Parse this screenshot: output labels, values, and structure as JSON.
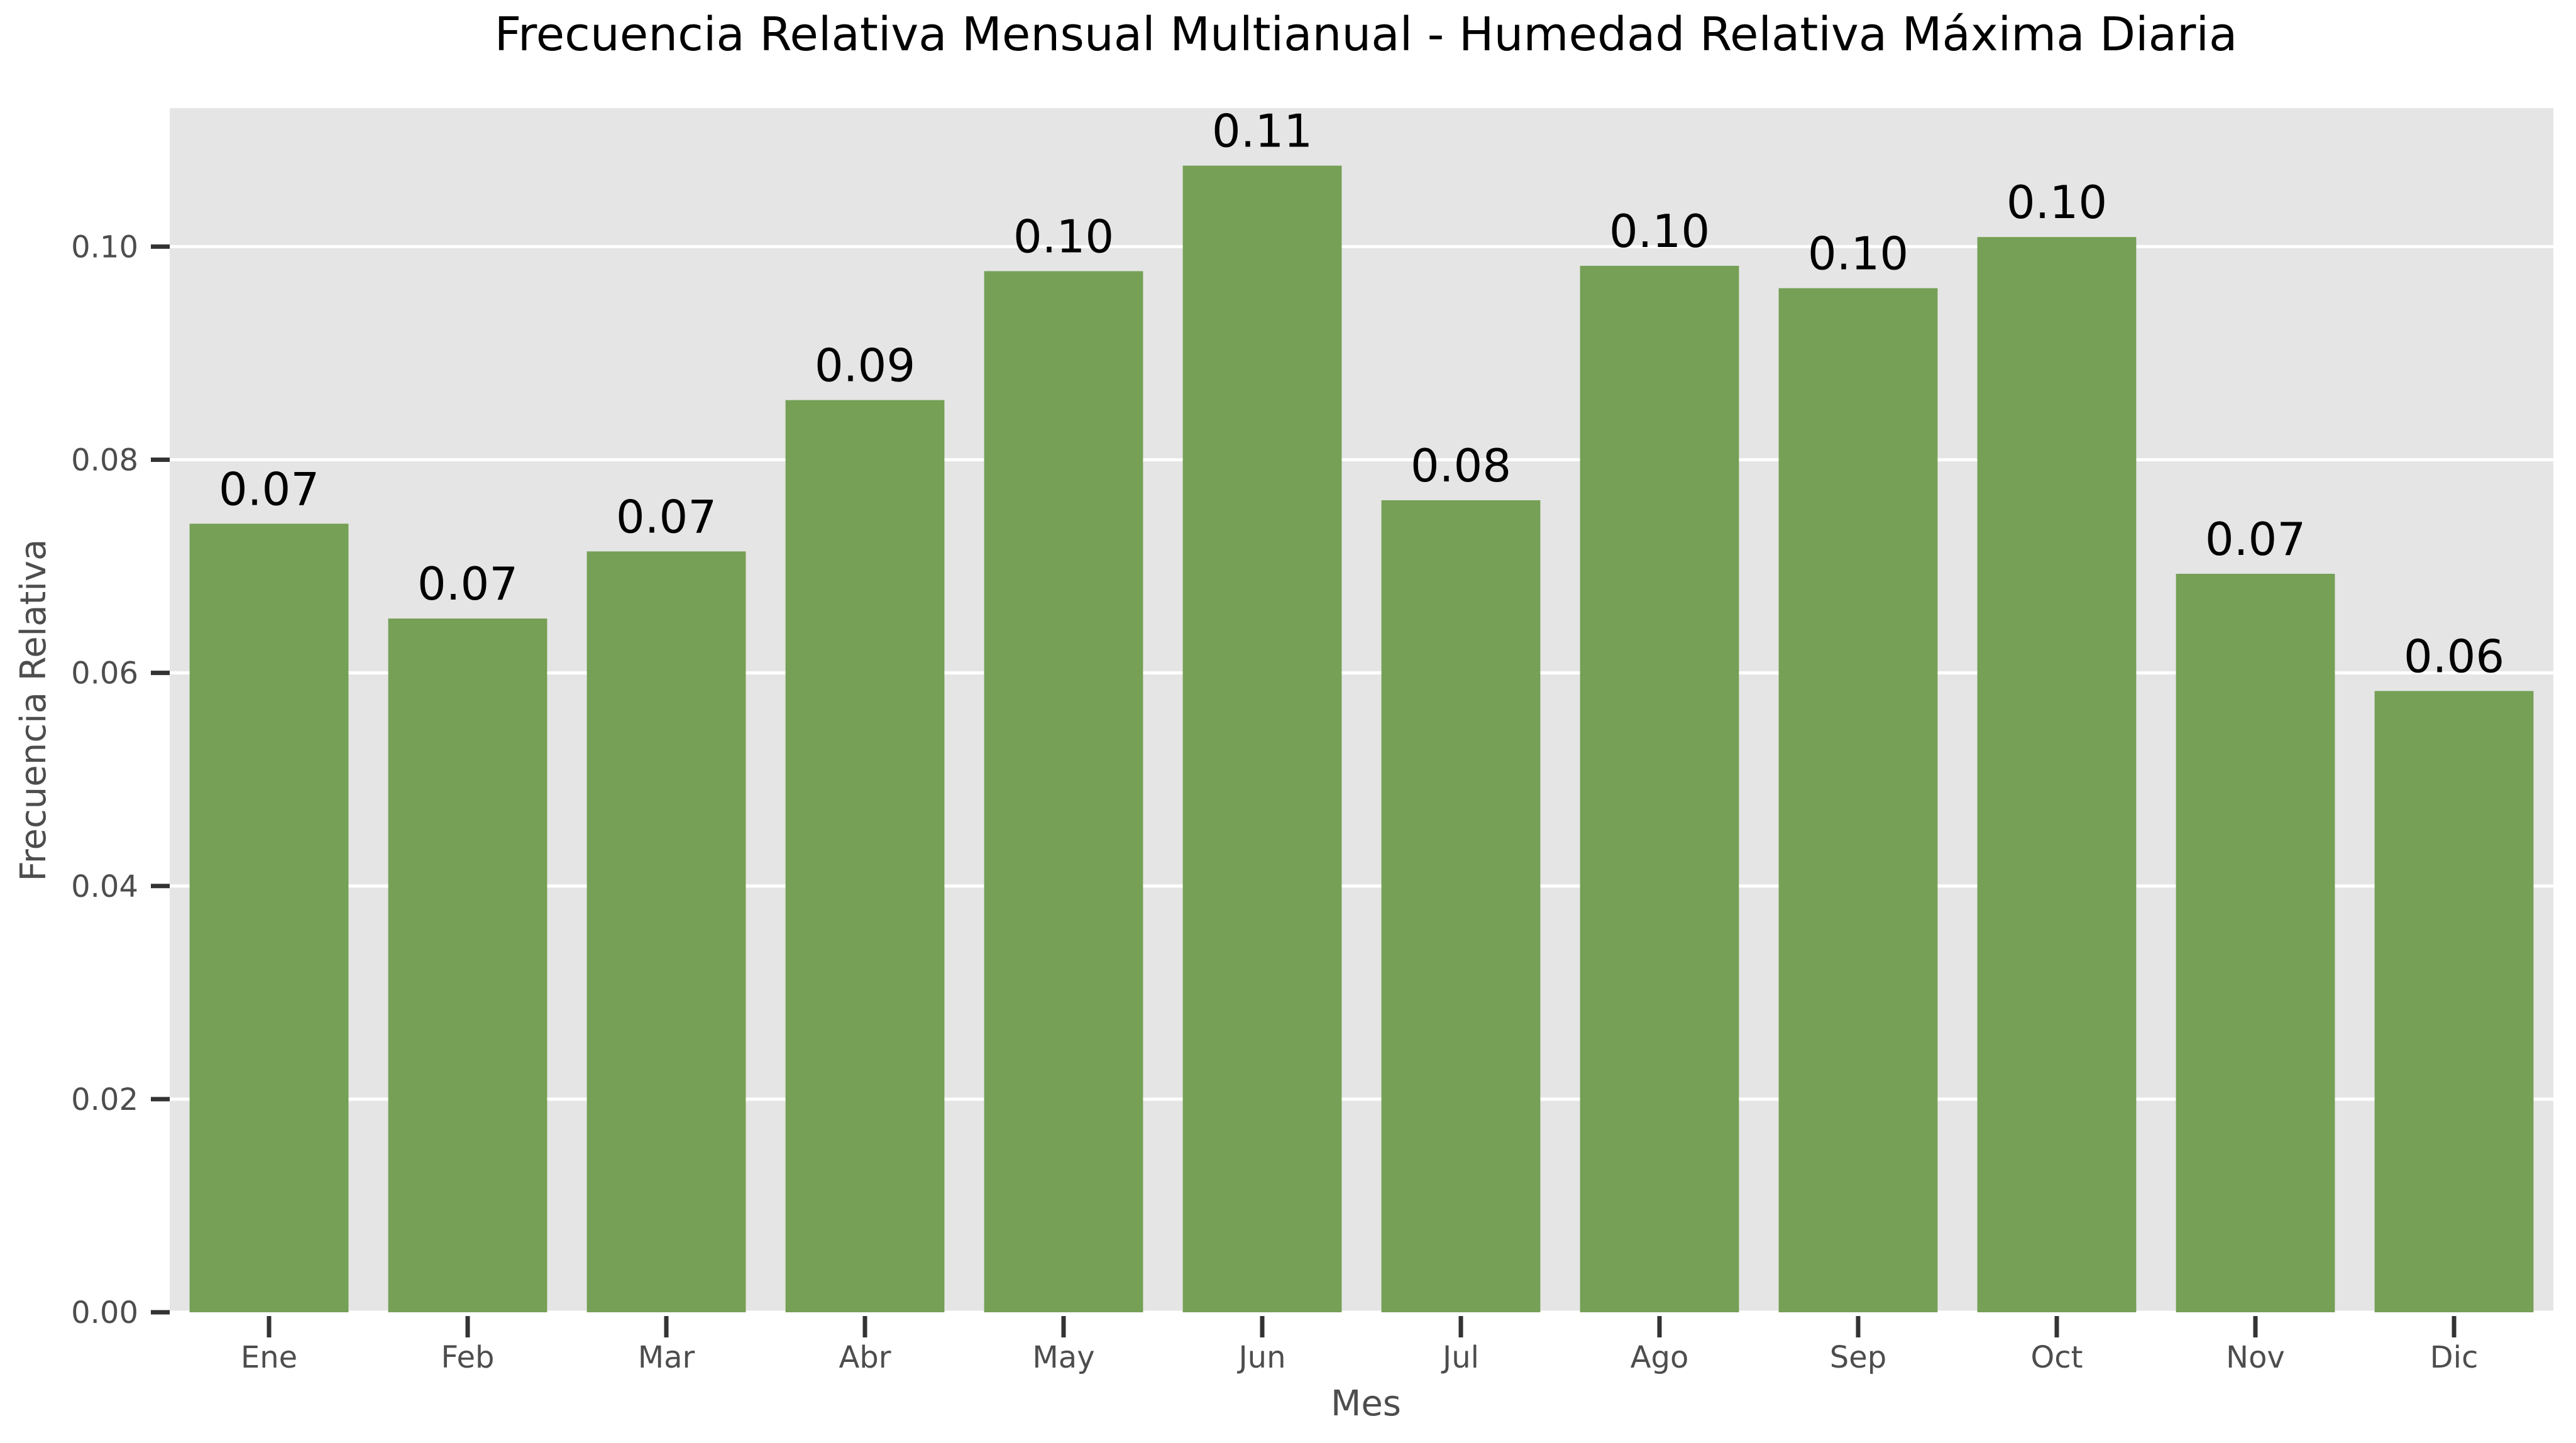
{
  "chart_data": {
    "type": "bar",
    "title": "Frecuencia Relativa Mensual Multianual - Humedad Relativa Máxima Diaria",
    "xlabel": "Mes",
    "ylabel": "Frecuencia Relativa",
    "categories": [
      "Ene",
      "Feb",
      "Mar",
      "Abr",
      "May",
      "Jun",
      "Jul",
      "Ago",
      "Sep",
      "Oct",
      "Nov",
      "Dic"
    ],
    "values": [
      0.074,
      0.0651,
      0.0714,
      0.0856,
      0.0977,
      0.1076,
      0.0762,
      0.0982,
      0.0961,
      0.1009,
      0.0693,
      0.0583
    ],
    "data_labels": [
      "0.07",
      "0.07",
      "0.07",
      "0.09",
      "0.10",
      "0.11",
      "0.08",
      "0.10",
      "0.10",
      "0.10",
      "0.07",
      "0.06"
    ],
    "yticks": [
      0.0,
      0.02,
      0.04,
      0.06,
      0.08,
      0.1
    ],
    "ytick_labels": [
      "0.00",
      "0.02",
      "0.04",
      "0.06",
      "0.08",
      "0.10"
    ],
    "ylim": [
      0,
      0.113
    ],
    "grid": true,
    "colors": {
      "bar": "#75a055",
      "plot_background": "#e5e5e5",
      "grid": "#ffffff",
      "text": "#000000",
      "axis_text": "#4d4d4d"
    }
  }
}
